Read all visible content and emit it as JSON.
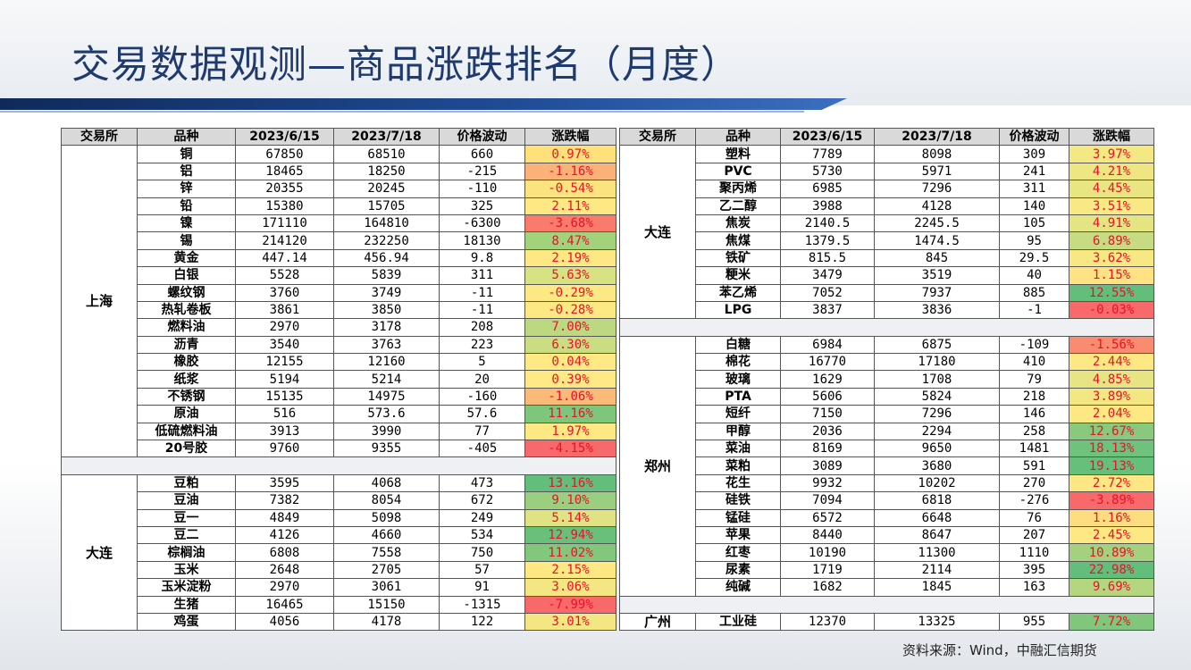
{
  "title": "交易数据观测—商品涨跌排名（月度）",
  "source": "资料来源：Wind，中融汇信期货",
  "headers": [
    "交易所",
    "品种",
    "2023/6/15",
    "2023/7/18",
    "价格波动",
    "涨跌幅"
  ],
  "colors": {
    "title": "#1f3a6e",
    "bar": "#1f4b95",
    "header_bg": "#d9d9d9",
    "pct_text": "#e8122a"
  },
  "left_groups": [
    {
      "exchange": "上海",
      "rows": [
        [
          "铜",
          "67850",
          "68510",
          "660",
          "0.97%",
          "#ffe07a"
        ],
        [
          "铝",
          "18465",
          "18250",
          "-215",
          "-1.16%",
          "#fbb278"
        ],
        [
          "锌",
          "20355",
          "20245",
          "-110",
          "-0.54%",
          "#fbe37f"
        ],
        [
          "铅",
          "15380",
          "15705",
          "325",
          "2.11%",
          "#fee884"
        ],
        [
          "镍",
          "171110",
          "164810",
          "-6300",
          "-3.68%",
          "#f87b6c"
        ],
        [
          "锡",
          "214120",
          "232250",
          "18130",
          "8.47%",
          "#a3d27d"
        ],
        [
          "黄金",
          "447.14",
          "456.94",
          "9.8",
          "2.19%",
          "#fee884"
        ],
        [
          "白银",
          "5528",
          "5839",
          "311",
          "5.63%",
          "#d8e283"
        ],
        [
          "螺纹钢",
          "3760",
          "3749",
          "-11",
          "-0.29%",
          "#fde984"
        ],
        [
          "热轧卷板",
          "3861",
          "3850",
          "-11",
          "-0.28%",
          "#fde984"
        ],
        [
          "燃料油",
          "2970",
          "3178",
          "208",
          "7.00%",
          "#bcd881"
        ],
        [
          "沥青",
          "3540",
          "3763",
          "223",
          "6.30%",
          "#cbdd82"
        ],
        [
          "橡胶",
          "12155",
          "12160",
          "5",
          "0.04%",
          "#fee984"
        ],
        [
          "纸浆",
          "5194",
          "5214",
          "20",
          "0.39%",
          "#fee984"
        ],
        [
          "不锈钢",
          "15135",
          "14975",
          "-160",
          "-1.06%",
          "#fbb97a"
        ],
        [
          "原油",
          "516",
          "573.6",
          "57.6",
          "11.16%",
          "#7dc67b"
        ],
        [
          "低硫燃料油",
          "3913",
          "3990",
          "77",
          "1.97%",
          "#fee884"
        ],
        [
          "20号胶",
          "9760",
          "9355",
          "-405",
          "-4.15%",
          "#f8696b"
        ]
      ]
    },
    {
      "exchange": "大连",
      "rows": [
        [
          "豆粕",
          "3595",
          "4068",
          "473",
          "13.16%",
          "#63be7b"
        ],
        [
          "豆油",
          "7382",
          "8054",
          "672",
          "9.10%",
          "#99cf7e"
        ],
        [
          "豆一",
          "4849",
          "5098",
          "249",
          "5.14%",
          "#e0e383"
        ],
        [
          "豆二",
          "4126",
          "4660",
          "534",
          "12.94%",
          "#68c07b"
        ],
        [
          "棕榈油",
          "6808",
          "7558",
          "750",
          "11.02%",
          "#82c77c"
        ],
        [
          "玉米",
          "2648",
          "2705",
          "57",
          "2.15%",
          "#fee884"
        ],
        [
          "玉米淀粉",
          "2970",
          "3061",
          "91",
          "3.06%",
          "#f5e684"
        ],
        [
          "生猪",
          "16465",
          "15150",
          "-1315",
          "-7.99%",
          "#f8696b"
        ],
        [
          "鸡蛋",
          "4056",
          "4178",
          "122",
          "3.01%",
          "#f5e684"
        ]
      ]
    }
  ],
  "right_groups": [
    {
      "exchange": "大连",
      "rows": [
        [
          "塑料",
          "7789",
          "8098",
          "309",
          "3.97%",
          "#f3e884"
        ],
        [
          "PVC",
          "5730",
          "5971",
          "241",
          "4.21%",
          "#eee683"
        ],
        [
          "聚丙烯",
          "6985",
          "7296",
          "311",
          "4.45%",
          "#e9e583"
        ],
        [
          "乙二醇",
          "3988",
          "4128",
          "140",
          "3.51%",
          "#f8e984"
        ],
        [
          "焦炭",
          "2140.5",
          "2245.5",
          "105",
          "4.91%",
          "#e4e483"
        ],
        [
          "焦煤",
          "1379.5",
          "1474.5",
          "95",
          "6.89%",
          "#c6db82"
        ],
        [
          "铁矿",
          "815.5",
          "845",
          "29.5",
          "3.62%",
          "#f7e884"
        ],
        [
          "粳米",
          "3479",
          "3519",
          "40",
          "1.15%",
          "#fee283"
        ],
        [
          "苯乙烯",
          "7052",
          "7937",
          "885",
          "12.55%",
          "#63be7b"
        ],
        [
          "LPG",
          "3837",
          "3836",
          "-1",
          "-0.03%",
          "#f8696b"
        ]
      ]
    },
    {
      "exchange": "郑州",
      "rows": [
        [
          "白糖",
          "6984",
          "6875",
          "-109",
          "-1.56%",
          "#f98c70"
        ],
        [
          "棉花",
          "16770",
          "17180",
          "410",
          "2.44%",
          "#fee884"
        ],
        [
          "玻璃",
          "1629",
          "1708",
          "79",
          "4.85%",
          "#e6e483"
        ],
        [
          "PTA",
          "5606",
          "5824",
          "218",
          "3.89%",
          "#f3e784"
        ],
        [
          "短纤",
          "7150",
          "7296",
          "146",
          "2.04%",
          "#fee884"
        ],
        [
          "甲醇",
          "2036",
          "2294",
          "258",
          "12.67%",
          "#89c97d"
        ],
        [
          "菜油",
          "8169",
          "9650",
          "1481",
          "18.13%",
          "#6fc27b"
        ],
        [
          "菜粕",
          "3089",
          "3680",
          "591",
          "19.13%",
          "#66c07b"
        ],
        [
          "花生",
          "9932",
          "10202",
          "270",
          "2.72%",
          "#fde784"
        ],
        [
          "硅铁",
          "7094",
          "6818",
          "-276",
          "-3.89%",
          "#f8696b"
        ],
        [
          "锰硅",
          "6572",
          "6648",
          "76",
          "1.16%",
          "#fedd80"
        ],
        [
          "苹果",
          "8440",
          "8647",
          "207",
          "2.45%",
          "#fee884"
        ],
        [
          "红枣",
          "10190",
          "11300",
          "1110",
          "10.89%",
          "#a3d17e"
        ],
        [
          "尿素",
          "1719",
          "2114",
          "395",
          "22.98%",
          "#63be7b"
        ],
        [
          "纯碱",
          "1682",
          "1845",
          "163",
          "9.69%",
          "#b5d680"
        ]
      ]
    },
    {
      "exchange": "广州",
      "rows": [
        [
          "工业硅",
          "12370",
          "13325",
          "955",
          "7.72%",
          "#80c77c"
        ]
      ]
    }
  ]
}
